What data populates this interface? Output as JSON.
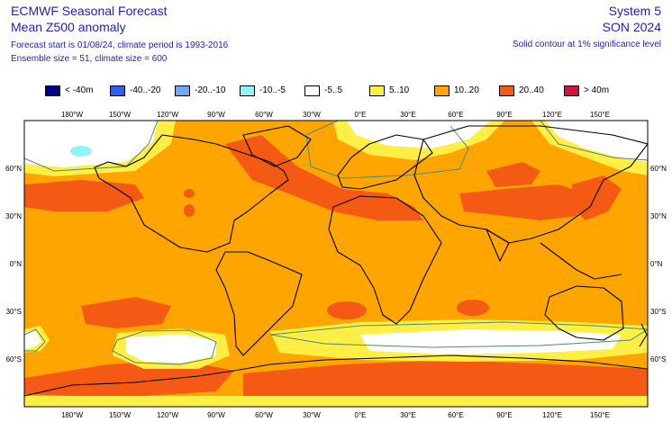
{
  "header": {
    "left": [
      "ECMWF Seasonal Forecast",
      "Mean Z500 anomaly",
      "Forecast start is 01/08/24, climate period is 1993-2016",
      "Ensemble size = 51, climate size = 600"
    ],
    "right": [
      "System 5",
      "SON 2024",
      "Solid contour at 1% significance level"
    ]
  },
  "legend": [
    {
      "label": "< -40m",
      "color": "#00008c"
    },
    {
      "label": "-40..-20",
      "color": "#2f5ff0"
    },
    {
      "label": "-20..-10",
      "color": "#6fa8f5"
    },
    {
      "label": "-10..-5",
      "color": "#8ff4f4"
    },
    {
      "label": "-5..5",
      "color": "#ffffff"
    },
    {
      "label": "5..10",
      "color": "#ffee44"
    },
    {
      "label": "10..20",
      "color": "#ffa500"
    },
    {
      "label": "20..40",
      "color": "#f55a14"
    },
    {
      "label": "> 40m",
      "color": "#d2143c"
    }
  ],
  "map": {
    "lon_labels": [
      "180°W",
      "150°W",
      "120°W",
      "90°W",
      "60°W",
      "30°W",
      "0°E",
      "30°E",
      "60°E",
      "90°E",
      "120°E",
      "150°E"
    ],
    "lat_labels": [
      "60°N",
      "30°N",
      "0°N",
      "30°S",
      "60°S"
    ],
    "colors": {
      "ocean_base": "#ffa500",
      "land_outline": "#000000",
      "significance_contour": "#4a8a7a"
    }
  }
}
